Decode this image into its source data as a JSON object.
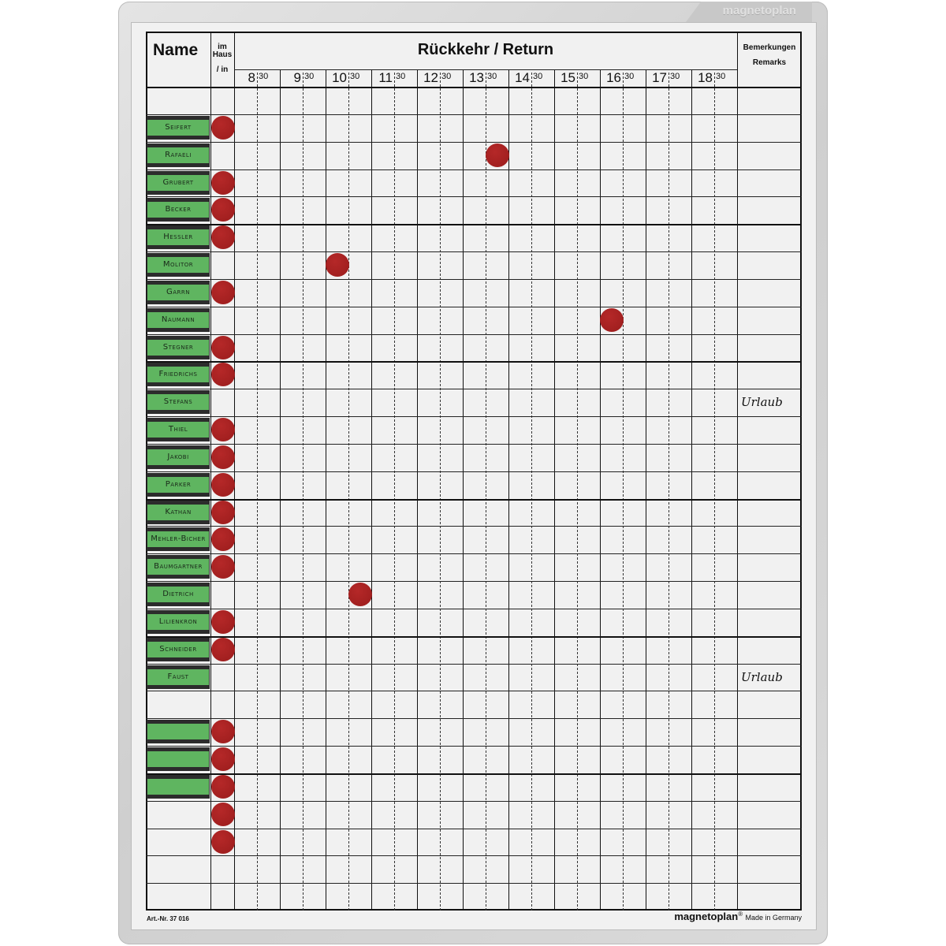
{
  "brand_tab": "magnetoplan",
  "header": {
    "name": "Name",
    "in_house": [
      "im",
      "Haus",
      "/ in"
    ],
    "title": "Rückkehr / Return",
    "remarks": [
      "Bemerkungen",
      "Remarks"
    ],
    "hours": [
      "8",
      "9",
      "10",
      "11",
      "12",
      "13",
      "14",
      "15",
      "16",
      "17",
      "18"
    ],
    "half_label": "30"
  },
  "rows": [
    {
      "name": "",
      "card": false,
      "in": false
    },
    {
      "name": "Seifert",
      "card": true,
      "in": true
    },
    {
      "name": "Rafaeli",
      "card": true,
      "in": false,
      "return": "13:30"
    },
    {
      "name": "Grubert",
      "card": true,
      "in": true
    },
    {
      "name": "Becker",
      "card": true,
      "in": true
    },
    {
      "name": "Hessler",
      "card": true,
      "in": true
    },
    {
      "name": "Molitor",
      "card": true,
      "in": false,
      "return": "10:00"
    },
    {
      "name": "Garrn",
      "card": true,
      "in": true
    },
    {
      "name": "Naumann",
      "card": true,
      "in": false,
      "return": "16:00"
    },
    {
      "name": "Stegner",
      "card": true,
      "in": true
    },
    {
      "name": "Friedrichs",
      "card": true,
      "in": true
    },
    {
      "name": "Stefans",
      "card": true,
      "in": false,
      "remark": "Urlaub"
    },
    {
      "name": "Thiel",
      "card": true,
      "in": true
    },
    {
      "name": "Jakobi",
      "card": true,
      "in": true
    },
    {
      "name": "Parker",
      "card": true,
      "in": true
    },
    {
      "name": "Kathan",
      "card": true,
      "in": true
    },
    {
      "name": "Mehler-Bicher",
      "card": true,
      "in": true
    },
    {
      "name": "Baumgartner",
      "card": true,
      "in": true
    },
    {
      "name": "Dietrich",
      "card": true,
      "in": false,
      "return": "10:30"
    },
    {
      "name": "Lilienkron",
      "card": true,
      "in": true
    },
    {
      "name": "Schneider",
      "card": true,
      "in": true
    },
    {
      "name": "Faust",
      "card": true,
      "in": false,
      "remark": "Urlaub"
    },
    {
      "name": "",
      "card": false,
      "in": false
    },
    {
      "name": "",
      "card": true,
      "in": true
    },
    {
      "name": "",
      "card": true,
      "in": true
    },
    {
      "name": "",
      "card": true,
      "in": true
    },
    {
      "name": "",
      "card": false,
      "in": true
    },
    {
      "name": "",
      "card": false,
      "in": true
    },
    {
      "name": "",
      "card": false,
      "in": false
    },
    {
      "name": "",
      "card": false,
      "in": false
    }
  ],
  "footer": {
    "article": "Art.-Nr. 37 016",
    "brand": "magnetoplan",
    "registered": "®",
    "made_in": "Made in Germany"
  },
  "colors": {
    "card": "#5fb560",
    "magnet": "#a51f1f",
    "frame": "#d6d6d6"
  }
}
